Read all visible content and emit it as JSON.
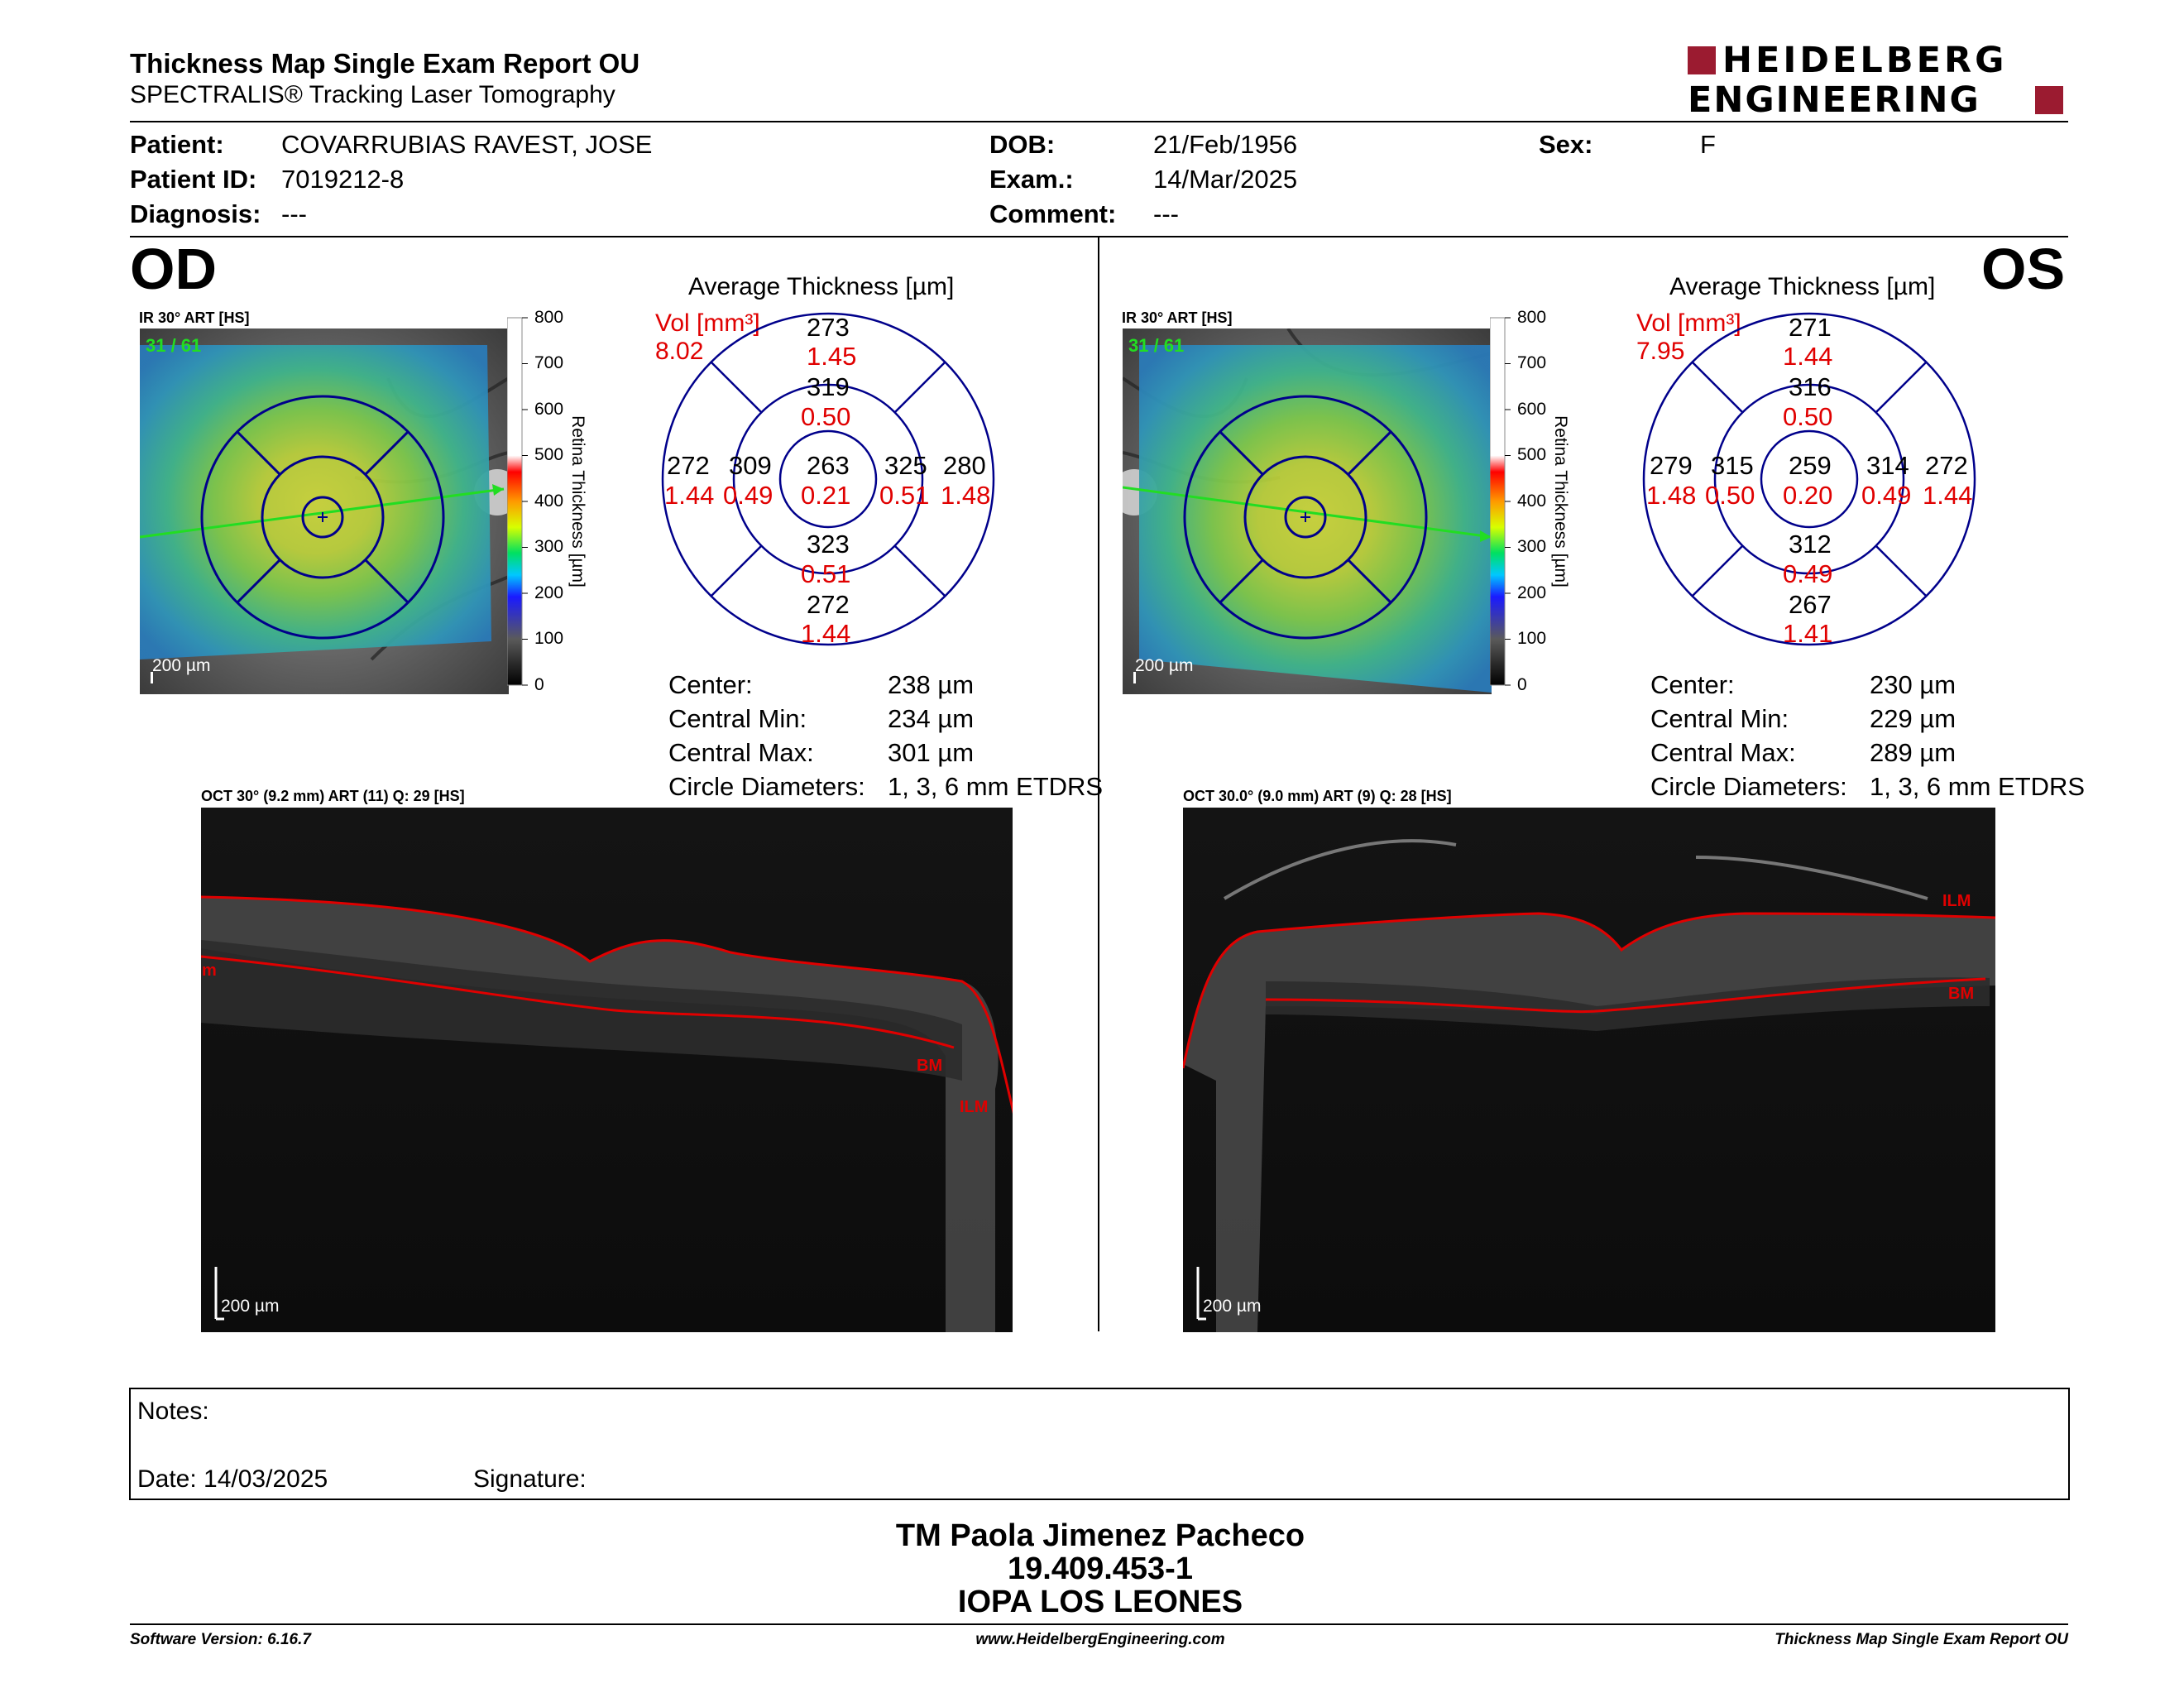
{
  "header": {
    "title": "Thickness Map Single Exam Report OU",
    "subtitle": "SPECTRALIS® Tracking Laser Tomography",
    "logo_line1": "HEIDELBERG",
    "logo_line2": "ENGINEERING",
    "brand_color": "#9b1b30"
  },
  "patient": {
    "patient_label": "Patient:",
    "patient_value": "COVARRUBIAS RAVEST, JOSE",
    "id_label": "Patient ID:",
    "id_value": "7019212-8",
    "diag_label": "Diagnosis:",
    "diag_value": "---",
    "dob_label": "DOB:",
    "dob_value": "21/Feb/1956",
    "exam_label": "Exam.:",
    "exam_value": "14/Mar/2025",
    "comment_label": "Comment:",
    "comment_value": "---",
    "sex_label": "Sex:",
    "sex_value": "F"
  },
  "colorbar": {
    "ticks": [
      "800",
      "700",
      "600",
      "500",
      "400",
      "300",
      "200",
      "100",
      "0"
    ],
    "label": "Retina Thickness [µm]"
  },
  "od": {
    "eye": "OD",
    "fundus_label": "IR 30° ART [HS]",
    "art_count": "31 / 61",
    "fundus_scale": "200 µm",
    "avg_title": "Average Thickness [µm]",
    "vol_label": "Vol [mm³]",
    "vol_value": "8.02",
    "sectors": {
      "top_outer": {
        "t": "273",
        "v": "1.45"
      },
      "top_inner": {
        "t": "319",
        "v": "0.50"
      },
      "left_outer": {
        "t": "272",
        "v": "1.44"
      },
      "left_inner": {
        "t": "309",
        "v": "0.49"
      },
      "center": {
        "t": "263",
        "v": "0.21"
      },
      "right_inner": {
        "t": "325",
        "v": "0.51"
      },
      "right_outer": {
        "t": "280",
        "v": "1.48"
      },
      "bottom_inner": {
        "t": "323",
        "v": "0.51"
      },
      "bottom_outer": {
        "t": "272",
        "v": "1.44"
      }
    },
    "stats": [
      {
        "label": "Center:",
        "value": "238 µm"
      },
      {
        "label": "Central Min:",
        "value": "234 µm"
      },
      {
        "label": "Central Max:",
        "value": "301 µm"
      },
      {
        "label": "Circle Diameters:",
        "value": "1, 3, 6 mm ETDRS"
      }
    ],
    "oct_label": "OCT 30° (9.2 mm) ART (11) Q: 29 [HS]",
    "oct_scale": "200 µm",
    "oct_markers": [
      "m",
      "BM",
      "ILM"
    ]
  },
  "os": {
    "eye": "OS",
    "fundus_label": "IR 30° ART [HS]",
    "art_count": "31 / 61",
    "fundus_scale": "200 µm",
    "avg_title": "Average Thickness [µm]",
    "vol_label": "Vol [mm³]",
    "vol_value": "7.95",
    "sectors": {
      "top_outer": {
        "t": "271",
        "v": "1.44"
      },
      "top_inner": {
        "t": "316",
        "v": "0.50"
      },
      "left_outer": {
        "t": "279",
        "v": "1.48"
      },
      "left_inner": {
        "t": "315",
        "v": "0.50"
      },
      "center": {
        "t": "259",
        "v": "0.20"
      },
      "right_inner": {
        "t": "314",
        "v": "0.49"
      },
      "right_outer": {
        "t": "272",
        "v": "1.44"
      },
      "bottom_inner": {
        "t": "312",
        "v": "0.49"
      },
      "bottom_outer": {
        "t": "267",
        "v": "1.41"
      }
    },
    "stats": [
      {
        "label": "Center:",
        "value": "230 µm"
      },
      {
        "label": "Central Min:",
        "value": "229 µm"
      },
      {
        "label": "Central Max:",
        "value": "289 µm"
      },
      {
        "label": "Circle Diameters:",
        "value": "1, 3, 6 mm ETDRS"
      }
    ],
    "oct_label": "OCT 30.0° (9.0 mm) ART (9) Q: 28 [HS]",
    "oct_scale": "200 µm",
    "oct_markers": [
      "ILM",
      "BM"
    ]
  },
  "notes": {
    "notes_label": "Notes:",
    "date_label": "Date: 14/03/2025",
    "signature_label": "Signature:"
  },
  "signature_block": {
    "name": "TM Paola Jimenez Pacheco",
    "rut": "19.409.453-1",
    "institution": "IOPA LOS LEONES"
  },
  "footer": {
    "version": "Software Version: 6.16.7",
    "website": "www.HeidelbergEngineering.com",
    "report": "Thickness Map Single Exam Report OU"
  }
}
